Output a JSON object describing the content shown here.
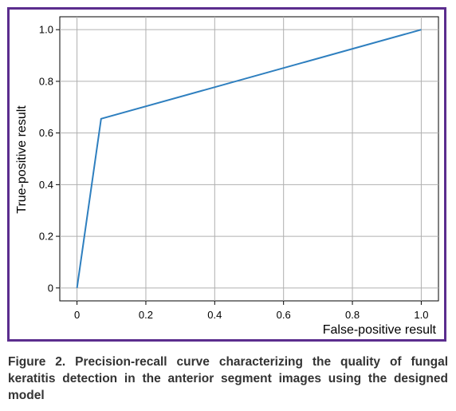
{
  "chart_data": {
    "type": "line",
    "title": "",
    "xlabel": "False-positive result",
    "ylabel": "True-positive result",
    "xlim": [
      -0.05,
      1.05
    ],
    "ylim": [
      -0.05,
      1.05
    ],
    "x_ticks": [
      0,
      0.2,
      0.4,
      0.6,
      0.8,
      1.0
    ],
    "x_tick_labels": [
      "0",
      "0.2",
      "0.4",
      "0.6",
      "0.8",
      "1.0"
    ],
    "y_ticks": [
      0,
      0.2,
      0.4,
      0.6,
      0.8,
      1.0
    ],
    "y_tick_labels": [
      "0",
      "0.2",
      "0.4",
      "0.6",
      "0.8",
      "1.0"
    ],
    "grid": true,
    "series": [
      {
        "color": "#2e7fbf",
        "x": [
          0,
          0.07,
          1.0
        ],
        "y": [
          0,
          0.655,
          1.0
        ]
      }
    ]
  },
  "caption": "Figure 2. Precision-recall curve characterizing the quality of fungal keratitis detection in the anterior segment images using the designed model",
  "colors": {
    "frame": "#5b2d8e",
    "line": "#2e7fbf",
    "grid": "#b0b0b0",
    "caption_text": "#333333"
  }
}
